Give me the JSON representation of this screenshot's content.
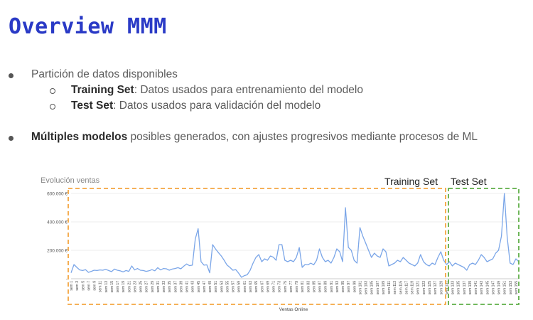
{
  "slide": {
    "title": "Overview MMM",
    "bullet1": "Partición de datos disponibles",
    "sub1_bold": "Training Set",
    "sub1_rest": ": Datos usados para entrenamiento del modelo",
    "sub2_bold": "Test Set",
    "sub2_rest": ": Datos usados para validación del modelo",
    "bullet2_bold": "Múltiples modelos",
    "bullet2_rest": " posibles generados, con ajustes progresivos mediante procesos de ML"
  },
  "chart_data": {
    "type": "line",
    "title": "Evolución ventas",
    "xlabel": "Ventas Online",
    "ylabel": "",
    "ylim": [
      0,
      650000
    ],
    "yticks": [
      "-",
      "200.000 €",
      "400.000 €",
      "600.000 €"
    ],
    "ytick_values": [
      0,
      200000,
      400000,
      600000
    ],
    "regions": [
      {
        "label": "Training Set",
        "color": "#f4a640",
        "from_week": 1,
        "to_week": 129
      },
      {
        "label": "Test Set",
        "color": "#5fae48",
        "from_week": 130,
        "to_week": 156
      }
    ],
    "series": [
      {
        "name": "",
        "color": "#7ba6e8",
        "x_start": 1,
        "x_step": 1,
        "values": [
          42000,
          100000,
          80000,
          62000,
          58000,
          64000,
          45000,
          52000,
          60000,
          58000,
          62000,
          60000,
          66000,
          58000,
          50000,
          68000,
          60000,
          56000,
          48000,
          58000,
          52000,
          90000,
          62000,
          72000,
          60000,
          58000,
          52000,
          56000,
          64000,
          56000,
          78000,
          62000,
          72000,
          70000,
          60000,
          68000,
          72000,
          78000,
          70000,
          88000,
          104000,
          92000,
          96000,
          280000,
          352000,
          120000,
          96000,
          98000,
          42000,
          240000,
          210000,
          184000,
          160000,
          130000,
          96000,
          80000,
          60000,
          64000,
          40000,
          10000,
          22000,
          28000,
          60000,
          110000,
          150000,
          170000,
          120000,
          140000,
          130000,
          160000,
          152000,
          130000,
          240000,
          240000,
          130000,
          120000,
          130000,
          120000,
          150000,
          220000,
          80000,
          100000,
          98000,
          110000,
          98000,
          130000,
          210000,
          150000,
          120000,
          130000,
          110000,
          150000,
          210000,
          190000,
          120000,
          500000,
          220000,
          200000,
          130000,
          110000,
          360000,
          300000,
          250000,
          200000,
          150000,
          180000,
          160000,
          150000,
          210000,
          190000,
          90000,
          100000,
          110000,
          130000,
          120000,
          150000,
          130000,
          110000,
          100000,
          90000,
          110000,
          170000,
          120000,
          100000,
          90000,
          110000,
          100000,
          150000,
          190000,
          130000,
          100000,
          120000,
          90000,
          110000,
          100000,
          90000,
          80000,
          60000,
          100000,
          110000,
          100000,
          130000,
          170000,
          150000,
          120000,
          130000,
          140000,
          180000,
          200000,
          300000,
          600000,
          290000,
          110000,
          100000,
          140000,
          120000
        ]
      }
    ],
    "xtick_labels": [
      "sem 1",
      "sem 3",
      "sem 5",
      "sem 7",
      "sem 9",
      "sem 11",
      "sem 13",
      "sem 15",
      "sem 17",
      "sem 19",
      "sem 21",
      "sem 23",
      "sem 25",
      "sem 27",
      "sem 29",
      "sem 31",
      "sem 33",
      "sem 35",
      "sem 37",
      "sem 39",
      "sem 41",
      "sem 43",
      "sem 45",
      "sem 47",
      "sem 49",
      "sem 51",
      "sem 53",
      "sem 55",
      "sem 57",
      "sem 59",
      "sem 61",
      "sem 63",
      "sem 65",
      "sem 67",
      "sem 69",
      "sem 71",
      "sem 73",
      "sem 75",
      "sem 77",
      "sem 79",
      "sem 81",
      "sem 83",
      "sem 85",
      "sem 87",
      "sem 89",
      "sem 91",
      "sem 93",
      "sem 95",
      "sem 97",
      "sem 99",
      "sem 101",
      "sem 103",
      "sem 105",
      "sem 107",
      "sem 109",
      "sem 111",
      "sem 113",
      "sem 115",
      "sem 117",
      "sem 119",
      "sem 121",
      "sem 123",
      "sem 125",
      "sem 127",
      "sem 129",
      "sem 131",
      "sem 133",
      "sem 135",
      "sem 137",
      "sem 139",
      "sem 141",
      "sem 143",
      "sem 145",
      "sem 147",
      "sem 149",
      "sem 151",
      "sem 153",
      "sem 155"
    ],
    "grid": "horizontal"
  }
}
